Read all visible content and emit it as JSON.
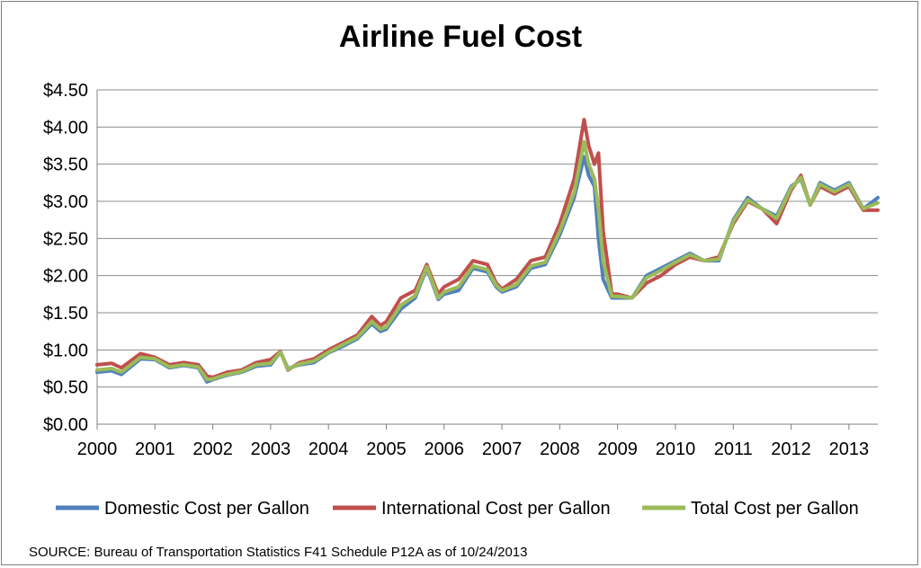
{
  "chart_data": {
    "type": "line",
    "title": "Airline Fuel Cost",
    "xlabel": "",
    "ylabel": "",
    "ylim": [
      0,
      4.5
    ],
    "y_ticks": [
      "$0.00",
      "$0.50",
      "$1.00",
      "$1.50",
      "$2.00",
      "$2.50",
      "$3.00",
      "$3.50",
      "$4.00",
      "$4.50"
    ],
    "x_tick_labels": [
      "2000",
      "2001",
      "2002",
      "2003",
      "2004",
      "2005",
      "2006",
      "2007",
      "2008",
      "2009",
      "2010",
      "2011",
      "2012",
      "2013"
    ],
    "grid": true,
    "legend_position": "bottom",
    "x_range": [
      2000,
      2013.5
    ],
    "series": [
      {
        "name": "Domestic Cost per Gallon",
        "color": "#4f81bd",
        "x": [
          2000.0,
          2000.25,
          2000.42,
          2000.75,
          2001.0,
          2001.25,
          2001.5,
          2001.75,
          2001.9,
          2002.0,
          2002.25,
          2002.5,
          2002.75,
          2003.0,
          2003.17,
          2003.3,
          2003.5,
          2003.75,
          2004.0,
          2004.25,
          2004.5,
          2004.75,
          2004.9,
          2005.0,
          2005.25,
          2005.5,
          2005.7,
          2005.9,
          2006.0,
          2006.25,
          2006.5,
          2006.75,
          2006.9,
          2007.0,
          2007.25,
          2007.5,
          2007.75,
          2008.0,
          2008.25,
          2008.42,
          2008.5,
          2008.6,
          2008.67,
          2008.75,
          2008.9,
          2009.0,
          2009.25,
          2009.5,
          2009.75,
          2010.0,
          2010.25,
          2010.5,
          2010.75,
          2011.0,
          2011.25,
          2011.5,
          2011.75,
          2012.0,
          2012.17,
          2012.33,
          2012.5,
          2012.75,
          2013.0,
          2013.25,
          2013.5
        ],
        "y": [
          0.7,
          0.72,
          0.67,
          0.88,
          0.87,
          0.76,
          0.79,
          0.76,
          0.57,
          0.6,
          0.66,
          0.7,
          0.78,
          0.8,
          0.97,
          0.75,
          0.8,
          0.83,
          0.96,
          1.05,
          1.15,
          1.35,
          1.25,
          1.28,
          1.55,
          1.7,
          2.1,
          1.68,
          1.75,
          1.8,
          2.1,
          2.05,
          1.85,
          1.78,
          1.85,
          2.1,
          2.15,
          2.55,
          3.05,
          3.6,
          3.35,
          3.2,
          2.5,
          1.95,
          1.7,
          1.7,
          1.7,
          2.0,
          2.1,
          2.2,
          2.3,
          2.2,
          2.2,
          2.75,
          3.05,
          2.9,
          2.8,
          3.2,
          3.3,
          2.95,
          3.25,
          3.15,
          3.25,
          2.9,
          3.05
        ]
      },
      {
        "name": "International Cost per Gallon",
        "color": "#c0504d",
        "x": [
          2000.0,
          2000.25,
          2000.42,
          2000.75,
          2001.0,
          2001.25,
          2001.5,
          2001.75,
          2001.9,
          2002.0,
          2002.25,
          2002.5,
          2002.75,
          2003.0,
          2003.17,
          2003.3,
          2003.5,
          2003.75,
          2004.0,
          2004.25,
          2004.5,
          2004.75,
          2004.9,
          2005.0,
          2005.25,
          2005.5,
          2005.7,
          2005.9,
          2006.0,
          2006.25,
          2006.5,
          2006.75,
          2006.9,
          2007.0,
          2007.25,
          2007.5,
          2007.75,
          2008.0,
          2008.25,
          2008.42,
          2008.5,
          2008.6,
          2008.67,
          2008.75,
          2008.9,
          2009.0,
          2009.25,
          2009.5,
          2009.75,
          2010.0,
          2010.25,
          2010.5,
          2010.75,
          2011.0,
          2011.25,
          2011.5,
          2011.75,
          2012.0,
          2012.17,
          2012.33,
          2012.5,
          2012.75,
          2013.0,
          2013.25,
          2013.5
        ],
        "y": [
          0.8,
          0.82,
          0.76,
          0.95,
          0.9,
          0.8,
          0.83,
          0.8,
          0.65,
          0.63,
          0.7,
          0.73,
          0.83,
          0.87,
          0.98,
          0.73,
          0.83,
          0.88,
          1.0,
          1.1,
          1.2,
          1.45,
          1.33,
          1.38,
          1.7,
          1.8,
          2.15,
          1.75,
          1.85,
          1.95,
          2.2,
          2.15,
          1.9,
          1.82,
          1.95,
          2.2,
          2.25,
          2.7,
          3.3,
          4.1,
          3.75,
          3.5,
          3.65,
          2.6,
          1.75,
          1.75,
          1.7,
          1.9,
          2.0,
          2.15,
          2.25,
          2.2,
          2.25,
          2.7,
          3.0,
          2.9,
          2.7,
          3.15,
          3.35,
          2.95,
          3.2,
          3.1,
          3.2,
          2.88,
          2.88
        ]
      },
      {
        "name": "Total Cost per Gallon",
        "color": "#9bbb59",
        "x": [
          2000.0,
          2000.25,
          2000.42,
          2000.75,
          2001.0,
          2001.25,
          2001.5,
          2001.75,
          2001.9,
          2002.0,
          2002.25,
          2002.5,
          2002.75,
          2003.0,
          2003.17,
          2003.3,
          2003.5,
          2003.75,
          2004.0,
          2004.25,
          2004.5,
          2004.75,
          2004.9,
          2005.0,
          2005.25,
          2005.5,
          2005.7,
          2005.9,
          2006.0,
          2006.25,
          2006.5,
          2006.75,
          2006.9,
          2007.0,
          2007.25,
          2007.5,
          2007.75,
          2008.0,
          2008.25,
          2008.42,
          2008.5,
          2008.6,
          2008.67,
          2008.75,
          2008.9,
          2009.0,
          2009.25,
          2009.5,
          2009.75,
          2010.0,
          2010.25,
          2010.5,
          2010.75,
          2011.0,
          2011.25,
          2011.5,
          2011.75,
          2012.0,
          2012.17,
          2012.33,
          2012.5,
          2012.75,
          2013.0,
          2013.25,
          2013.5
        ],
        "y": [
          0.73,
          0.75,
          0.7,
          0.9,
          0.88,
          0.77,
          0.8,
          0.77,
          0.6,
          0.61,
          0.67,
          0.71,
          0.8,
          0.82,
          0.97,
          0.74,
          0.81,
          0.85,
          0.97,
          1.07,
          1.17,
          1.38,
          1.28,
          1.31,
          1.6,
          1.73,
          2.12,
          1.7,
          1.78,
          1.85,
          2.13,
          2.08,
          1.87,
          1.8,
          1.88,
          2.13,
          2.18,
          2.6,
          3.12,
          3.8,
          3.5,
          3.3,
          2.9,
          2.2,
          1.72,
          1.72,
          1.7,
          1.97,
          2.07,
          2.18,
          2.28,
          2.2,
          2.22,
          2.73,
          3.02,
          2.9,
          2.77,
          3.18,
          3.32,
          2.95,
          3.23,
          3.13,
          3.23,
          2.9,
          2.98
        ]
      }
    ]
  },
  "source_note": "SOURCE: Bureau of Transportation Statistics F41 Schedule P12A as of 10/24/2013"
}
